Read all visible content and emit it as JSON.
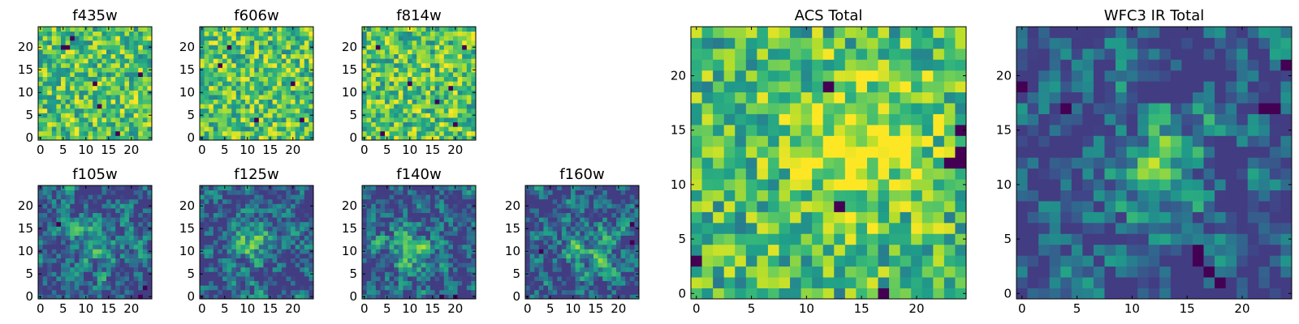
{
  "chart_data": {
    "type": "heatmap",
    "colormap": "viridis",
    "grid": false,
    "panels": [
      {
        "title": "f435w",
        "grid_size": 25,
        "xlim": [
          0,
          24
        ],
        "ylim": [
          0,
          24
        ],
        "xticks": [
          0,
          5,
          10,
          15,
          20
        ],
        "yticks": [
          0,
          5,
          10,
          15,
          20
        ],
        "texture": "noisy",
        "seed": 11,
        "blob": null,
        "dark_cells": [
          [
            5,
            20
          ],
          [
            6,
            20
          ],
          [
            13,
            7
          ],
          [
            17,
            1
          ],
          [
            12,
            12
          ],
          [
            22,
            14
          ],
          [
            7,
            22
          ]
        ]
      },
      {
        "title": "f606w",
        "grid_size": 25,
        "xlim": [
          0,
          24
        ],
        "ylim": [
          0,
          24
        ],
        "xticks": [
          0,
          5,
          10,
          15,
          20
        ],
        "yticks": [
          0,
          5,
          10,
          15,
          20
        ],
        "texture": "noisy",
        "seed": 23,
        "blob": null,
        "dark_cells": [
          [
            6,
            20
          ],
          [
            20,
            12
          ],
          [
            12,
            4
          ],
          [
            22,
            4
          ],
          [
            4,
            16
          ]
        ]
      },
      {
        "title": "f814w",
        "grid_size": 25,
        "xlim": [
          0,
          24
        ],
        "ylim": [
          0,
          24
        ],
        "xticks": [
          0,
          5,
          10,
          15,
          20
        ],
        "yticks": [
          0,
          5,
          10,
          15,
          20
        ],
        "texture": "noisy",
        "seed": 37,
        "blob": null,
        "dark_cells": [
          [
            3,
            20
          ],
          [
            10,
            12
          ],
          [
            4,
            1
          ],
          [
            20,
            3
          ],
          [
            22,
            20
          ],
          [
            19,
            11
          ],
          [
            16,
            8
          ]
        ]
      },
      {
        "title": "f105w",
        "grid_size": 25,
        "xlim": [
          0,
          24
        ],
        "ylim": [
          0,
          24
        ],
        "xticks": [
          0,
          5,
          10,
          15,
          20
        ],
        "yticks": [
          0,
          5,
          10,
          15,
          20
        ],
        "texture": "smooth",
        "seed": 41,
        "blob": [
          13,
          12
        ],
        "dark_cells": [
          [
            4,
            16
          ],
          [
            22,
            0
          ],
          [
            23,
            2
          ]
        ]
      },
      {
        "title": "f125w",
        "grid_size": 25,
        "xlim": [
          0,
          24
        ],
        "ylim": [
          0,
          24
        ],
        "xticks": [
          0,
          5,
          10,
          15,
          20
        ],
        "yticks": [
          0,
          5,
          10,
          15,
          20
        ],
        "texture": "smooth",
        "seed": 53,
        "blob": [
          11,
          12
        ],
        "dark_cells": []
      },
      {
        "title": "f140w",
        "grid_size": 25,
        "xlim": [
          0,
          24
        ],
        "ylim": [
          0,
          24
        ],
        "xticks": [
          0,
          5,
          10,
          15,
          20
        ],
        "yticks": [
          0,
          5,
          10,
          15,
          20
        ],
        "texture": "smooth",
        "seed": 67,
        "blob": [
          10,
          10
        ],
        "dark_cells": [
          [
            17,
            0
          ],
          [
            20,
            0
          ]
        ]
      },
      {
        "title": "f160w",
        "grid_size": 25,
        "xlim": [
          0,
          24
        ],
        "ylim": [
          0,
          24
        ],
        "xticks": [
          0,
          5,
          10,
          15,
          20
        ],
        "yticks": [
          0,
          5,
          10,
          15,
          20
        ],
        "texture": "smooth",
        "seed": 79,
        "blob": [
          13,
          10
        ],
        "dark_cells": [
          [
            23,
            16
          ],
          [
            3,
            10
          ],
          [
            23,
            12
          ]
        ]
      },
      {
        "title": "ACS Total",
        "grid_size": 25,
        "xlim": [
          0,
          24
        ],
        "ylim": [
          0,
          24
        ],
        "xticks": [
          0,
          5,
          10,
          15,
          20
        ],
        "yticks": [
          0,
          5,
          10,
          15,
          20
        ],
        "texture": "noisy",
        "seed": 97,
        "blob": [
          15,
          14
        ],
        "dark_cells": [
          [
            12,
            19
          ],
          [
            13,
            8
          ],
          [
            17,
            0
          ],
          [
            0,
            3
          ],
          [
            24,
            15
          ],
          [
            24,
            13
          ],
          [
            24,
            12
          ],
          [
            23,
            12
          ]
        ]
      },
      {
        "title": "WFC3 IR Total",
        "grid_size": 25,
        "xlim": [
          0,
          24
        ],
        "ylim": [
          0,
          24
        ],
        "xticks": [
          0,
          5,
          10,
          15,
          20
        ],
        "yticks": [
          0,
          5,
          10,
          15,
          20
        ],
        "texture": "smooth",
        "seed": 101,
        "blob": [
          12,
          13
        ],
        "dark_cells": [
          [
            22,
            17
          ],
          [
            23,
            17
          ],
          [
            4,
            17
          ],
          [
            16,
            4
          ],
          [
            16,
            3
          ],
          [
            17,
            2
          ],
          [
            18,
            1
          ],
          [
            24,
            21
          ],
          [
            0,
            19
          ]
        ]
      }
    ]
  }
}
